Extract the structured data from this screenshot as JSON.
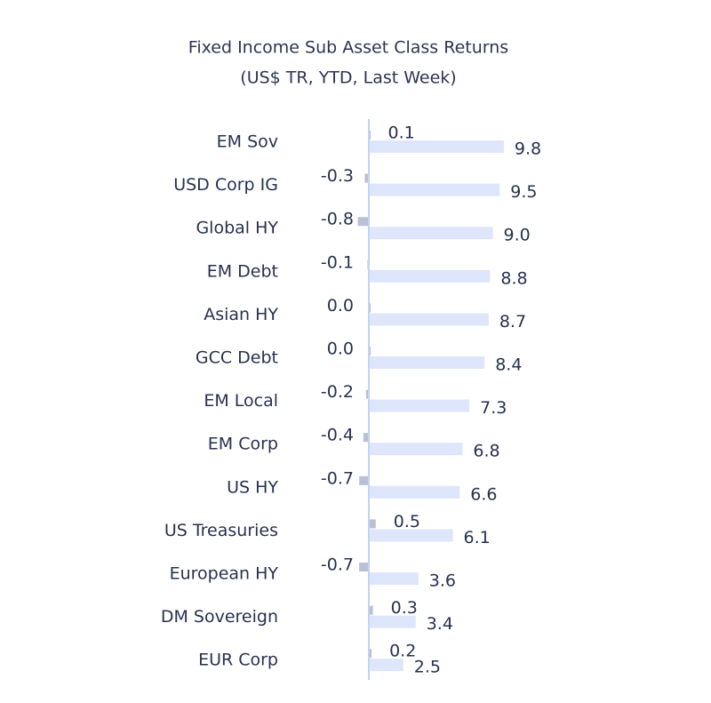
{
  "chart_data": {
    "type": "bar",
    "orientation": "horizontal",
    "title": "Fixed Income Sub Asset Class Returns",
    "subtitle": "(US$ TR, YTD, Last Week)",
    "categories": [
      "EM Sov",
      "USD Corp IG",
      "Global HY",
      "EM Debt",
      "Asian HY",
      "GCC Debt",
      "EM Local",
      "EM Corp",
      "US HY",
      "US Treasuries",
      "European HY",
      "DM Sovereign",
      "EUR Corp"
    ],
    "series": [
      {
        "color": "#dde6fb",
        "values": [
          9.8,
          9.5,
          9.0,
          8.8,
          8.7,
          8.4,
          7.3,
          6.8,
          6.6,
          6.1,
          3.6,
          3.4,
          2.5
        ],
        "value_labels": [
          "9.8",
          "9.5",
          "9.0",
          "8.8",
          "8.7",
          "8.4",
          "7.3",
          "6.8",
          "6.6",
          "6.1",
          "3.6",
          "3.4",
          "2.5"
        ]
      },
      {
        "color": "#b9c0d8",
        "values": [
          0.1,
          -0.3,
          -0.8,
          -0.1,
          0.0,
          0.0,
          -0.2,
          -0.4,
          -0.7,
          0.5,
          -0.7,
          0.3,
          0.2
        ],
        "value_labels": [
          "0.1",
          "-0.3",
          "-0.8",
          "-0.1",
          "0.0",
          "0.0",
          "-0.2",
          "-0.4",
          "-0.7",
          "0.5",
          "-0.7",
          "0.3",
          "0.2"
        ]
      }
    ]
  }
}
